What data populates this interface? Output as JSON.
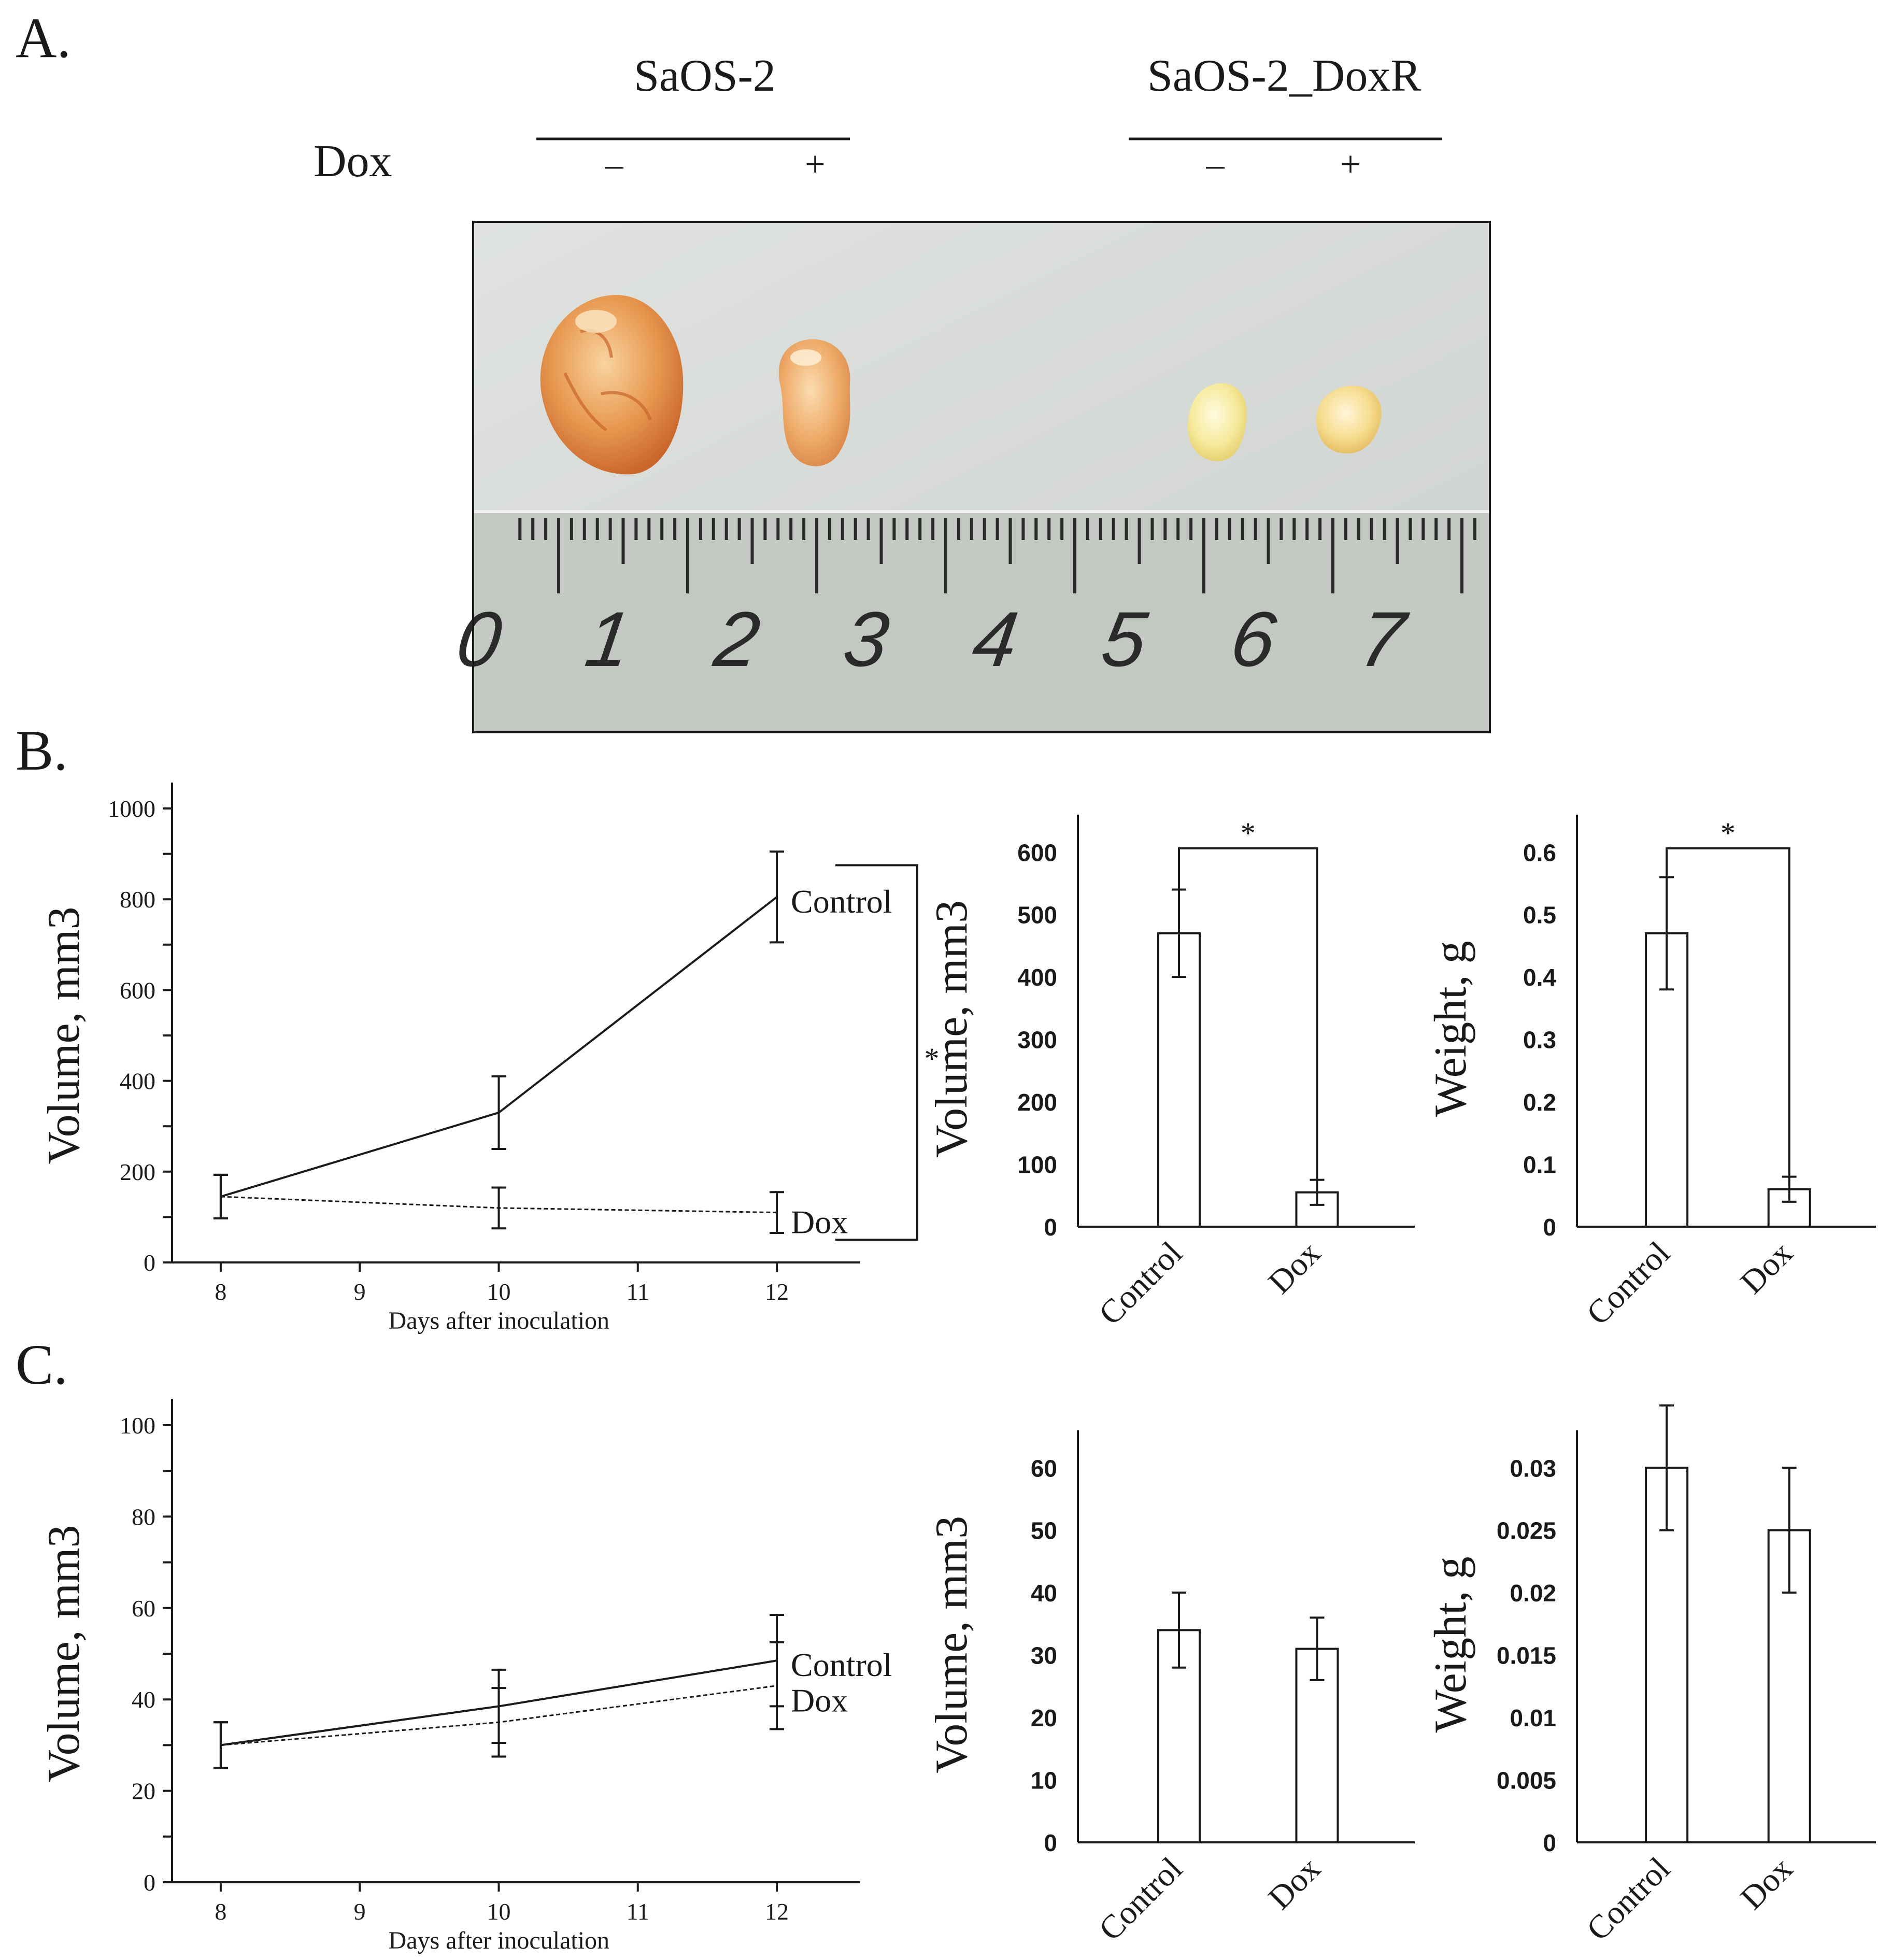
{
  "panels": {
    "a": "A.",
    "b": "B.",
    "c": "C."
  },
  "photo": {
    "dox_label": "Dox",
    "groups": [
      {
        "name": "SaOS-2",
        "minus": "–",
        "plus": "+"
      },
      {
        "name": "SaOS-2_DoxR",
        "minus": "–",
        "plus": "+"
      }
    ],
    "ruler_numbers": [
      "0",
      "1",
      "2",
      "3",
      "4",
      "5",
      "6",
      "7"
    ]
  },
  "chart_data": [
    {
      "id": "b_line",
      "type": "line",
      "xlabel": "Days after inoculation",
      "ylabel": "Volume, mm3",
      "xlim": [
        7.65,
        12.6
      ],
      "ylim": [
        0,
        1000
      ],
      "x_ticks": [
        "8",
        "9",
        "10",
        "11",
        "12"
      ],
      "y_ticks": [
        "0",
        "200",
        "400",
        "600",
        "800",
        "1000"
      ],
      "series": [
        {
          "name": "Control",
          "x": [
            8,
            10,
            12
          ],
          "y": [
            145,
            330,
            805
          ],
          "err": [
            48,
            80,
            100
          ]
        },
        {
          "name": "Dox",
          "x": [
            8,
            10,
            12
          ],
          "y": [
            145,
            120,
            110
          ],
          "err": [
            48,
            45,
            45
          ]
        }
      ],
      "significance": "*"
    },
    {
      "id": "b_volume",
      "type": "bar",
      "ylabel": "Volume, mm3",
      "ylim": [
        0,
        660
      ],
      "y_ticks": [
        "0",
        "100",
        "200",
        "300",
        "400",
        "500",
        "600"
      ],
      "categories": [
        "Control",
        "Dox"
      ],
      "values": [
        470,
        55
      ],
      "err": [
        70,
        20
      ],
      "significance": "*"
    },
    {
      "id": "b_weight",
      "type": "bar",
      "ylabel": "Weight, g",
      "ylim": [
        0,
        0.66
      ],
      "y_ticks": [
        "0",
        "0.1",
        "0.2",
        "0.3",
        "0.4",
        "0.5",
        "0.6"
      ],
      "categories": [
        "Control",
        "Dox"
      ],
      "values": [
        0.47,
        0.06
      ],
      "err": [
        0.09,
        0.02
      ],
      "significance": "*"
    },
    {
      "id": "c_line",
      "type": "line",
      "xlabel": "Days after inoculation",
      "ylabel": "Volume, mm3",
      "xlim": [
        7.65,
        12.6
      ],
      "ylim": [
        0,
        100
      ],
      "x_ticks": [
        "8",
        "9",
        "10",
        "11",
        "12"
      ],
      "y_ticks": [
        "0",
        "20",
        "40",
        "60",
        "80",
        "100"
      ],
      "series": [
        {
          "name": "Control",
          "x": [
            8,
            10,
            12
          ],
          "y": [
            30,
            38.5,
            48.5
          ],
          "err": [
            5,
            8,
            10
          ]
        },
        {
          "name": "Dox",
          "x": [
            8,
            10,
            12
          ],
          "y": [
            30,
            35,
            43
          ],
          "err": [
            5,
            7.5,
            9.5
          ]
        }
      ]
    },
    {
      "id": "c_volume",
      "type": "bar",
      "ylabel": "Volume, mm3",
      "ylim": [
        0,
        66
      ],
      "y_ticks": [
        "0",
        "10",
        "20",
        "30",
        "40",
        "50",
        "60"
      ],
      "categories": [
        "Control",
        "Dox"
      ],
      "values": [
        34,
        31
      ],
      "err": [
        6,
        5
      ]
    },
    {
      "id": "c_weight",
      "type": "bar",
      "ylabel": "Weight, g",
      "ylim": [
        0,
        0.033
      ],
      "y_ticks": [
        "0",
        "0.005",
        "0.01",
        "0.015",
        "0.02",
        "0.025",
        "0.03"
      ],
      "categories": [
        "Control",
        "Dox"
      ],
      "values": [
        0.03,
        0.025
      ],
      "err": [
        0.005,
        0.005
      ]
    }
  ],
  "colors": {
    "ink": "#1a1a1a",
    "photo_bg": "#d9dcd8",
    "ruler": "#c4c9c4",
    "tumor_large": "#e59a52",
    "tumor_mid": "#eeae6c",
    "tumor_small": "#f4e79c"
  }
}
